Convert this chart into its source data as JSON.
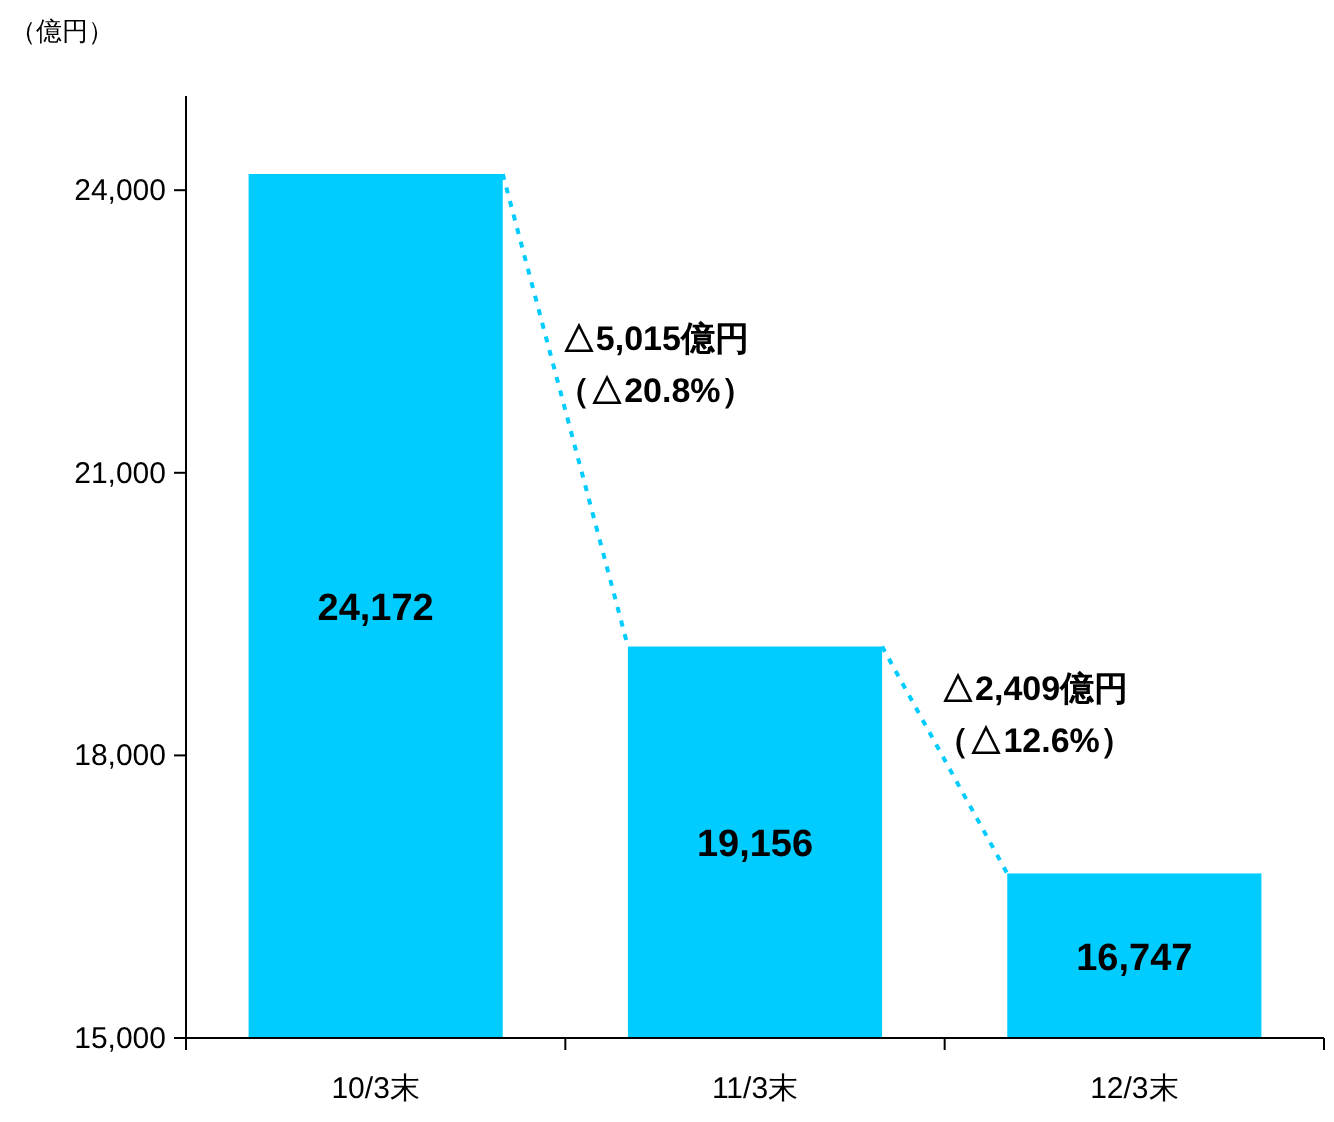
{
  "chart_data": {
    "type": "bar",
    "ylabel": "（億円）",
    "categories": [
      "10/3末",
      "11/3末",
      "12/3末"
    ],
    "values": [
      24172,
      19156,
      16747
    ],
    "color": "#00ccff",
    "ylim": [
      15000,
      25000
    ],
    "yticks": [
      {
        "value": 15000,
        "label": "15,000"
      },
      {
        "value": 18000,
        "label": "18,000"
      },
      {
        "value": 21000,
        "label": "21,000"
      },
      {
        "value": 24000,
        "label": "24,000"
      }
    ],
    "value_labels": [
      "24,172",
      "19,156",
      "16,747"
    ],
    "line_style": "dotted",
    "annotations": [
      "△5,015億円",
      "（△20.8%）",
      "△2,409億円",
      "（△12.6%）"
    ]
  }
}
